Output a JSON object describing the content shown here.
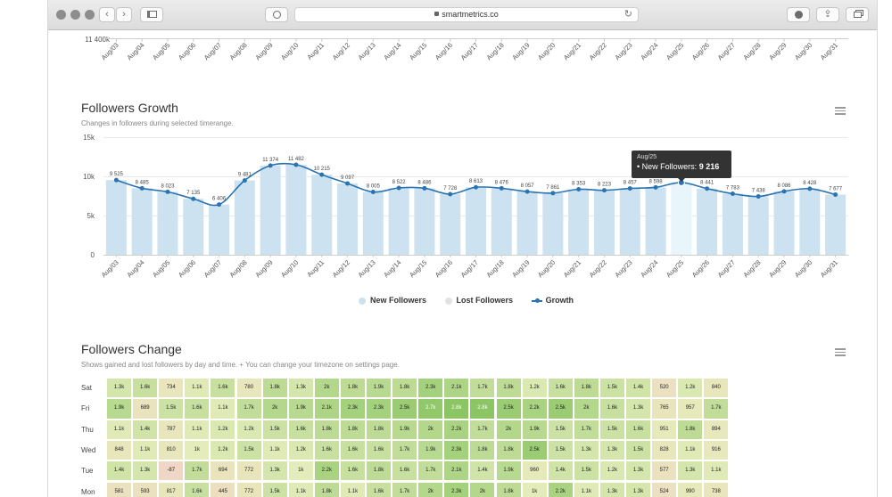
{
  "browser": {
    "url": "smartmetrics.co"
  },
  "top_chart": {
    "y_tick": "11 400k",
    "x_labels": [
      "Aug/03",
      "Aug/04",
      "Aug/05",
      "Aug/06",
      "Aug/07",
      "Aug/08",
      "Aug/09",
      "Aug/10",
      "Aug/11",
      "Aug/12",
      "Aug/13",
      "Aug/14",
      "Aug/15",
      "Aug/16",
      "Aug/17",
      "Aug/18",
      "Aug/19",
      "Aug/20",
      "Aug/21",
      "Aug/22",
      "Aug/23",
      "Aug/24",
      "Aug/25",
      "Aug/26",
      "Aug/27",
      "Aug/28",
      "Aug/29",
      "Aug/30",
      "Aug/31"
    ]
  },
  "growth": {
    "title": "Followers Growth",
    "subtitle": "Changes in followers during selected timerange.",
    "tooltip": {
      "date": "Aug/25",
      "label": "• New Followers:",
      "value": "9 216"
    },
    "legend": [
      {
        "name": "New Followers",
        "color": "#cde2f1"
      },
      {
        "name": "Lost Followers",
        "color": "#e2e2e2"
      },
      {
        "name": "Growth",
        "color": "#2a74b3"
      }
    ]
  },
  "chart_data": {
    "type": "bar",
    "categories": [
      "Aug/03",
      "Aug/04",
      "Aug/05",
      "Aug/06",
      "Aug/07",
      "Aug/08",
      "Aug/09",
      "Aug/10",
      "Aug/11",
      "Aug/12",
      "Aug/13",
      "Aug/14",
      "Aug/15",
      "Aug/16",
      "Aug/17",
      "Aug/18",
      "Aug/19",
      "Aug/20",
      "Aug/21",
      "Aug/22",
      "Aug/23",
      "Aug/24",
      "Aug/25",
      "Aug/26",
      "Aug/27",
      "Aug/28",
      "Aug/29",
      "Aug/30",
      "Aug/31"
    ],
    "y_ticks": [
      "0",
      "5k",
      "10k",
      "15k"
    ],
    "ylim": [
      0,
      15000
    ],
    "series": [
      {
        "name": "New Followers",
        "type": "bar",
        "values": [
          9525,
          8485,
          8023,
          7135,
          6406,
          9481,
          11374,
          11482,
          10215,
          9097,
          8005,
          8522,
          8486,
          7728,
          8613,
          8476,
          8057,
          7861,
          8353,
          8223,
          8457,
          8598,
          9216,
          8441,
          7783,
          7438,
          8086,
          8428,
          7677
        ]
      },
      {
        "name": "Growth",
        "type": "line",
        "values": [
          9525,
          8485,
          8023,
          7135,
          6406,
          9481,
          11374,
          11482,
          10215,
          9097,
          8005,
          8522,
          8486,
          7728,
          8613,
          8476,
          8057,
          7861,
          8353,
          8223,
          8457,
          8598,
          9216,
          8441,
          7783,
          7438,
          8086,
          8428,
          7677
        ]
      }
    ],
    "data_labels": [
      "9 525",
      "8 485",
      "8 023",
      "7 135",
      "6 406",
      "9 481",
      "11 374",
      "11 482",
      "10 215",
      "9 097",
      "8 005",
      "8 522",
      "8 486",
      "7 728",
      "8 613",
      "8 476",
      "8 057",
      "7 861",
      "8 353",
      "8 223",
      "8 457",
      "8 598",
      "",
      "8 441",
      "7 783",
      "7 438",
      "8 086",
      "8 428",
      "7 677"
    ],
    "legend": "bottom",
    "grid": true
  },
  "change": {
    "title": "Followers Change",
    "subtitle": "Shows gained and lost followers by day and time. + You can change your timezone on settings page.",
    "rows": [
      {
        "day": "Sat",
        "values": [
          "1.3k",
          "1.6k",
          "734",
          "1.1k",
          "1.6k",
          "780",
          "1.8k",
          "1.3k",
          "2k",
          "1.8k",
          "1.9k",
          "1.8k",
          "2.3k",
          "2.1k",
          "1.7k",
          "1.8k",
          "1.2k",
          "1.6k",
          "1.8k",
          "1.5k",
          "1.4k",
          "520",
          "1.2k",
          "840"
        ]
      },
      {
        "day": "Fri",
        "values": [
          "1.9k",
          "689",
          "1.5k",
          "1.6k",
          "1.1k",
          "1.7k",
          "2k",
          "1.9k",
          "2.1k",
          "2.3k",
          "2.3k",
          "2.5k",
          "2.7k",
          "2.8k",
          "2.8k",
          "2.5k",
          "2.2k",
          "2.5k",
          "2k",
          "1.6k",
          "1.3k",
          "765",
          "957",
          "1.7k"
        ]
      },
      {
        "day": "Thu",
        "values": [
          "1.1k",
          "1.4k",
          "787",
          "1.1k",
          "1.2k",
          "1.2k",
          "1.5k",
          "1.6k",
          "1.8k",
          "1.8k",
          "1.8k",
          "1.9k",
          "2k",
          "2.2k",
          "1.7k",
          "2k",
          "1.9k",
          "1.5k",
          "1.7k",
          "1.5k",
          "1.6k",
          "951",
          "1.8k",
          "894"
        ]
      },
      {
        "day": "Wed",
        "values": [
          "848",
          "1.1k",
          "810",
          "1k",
          "1.2k",
          "1.5k",
          "1.1k",
          "1.2k",
          "1.6k",
          "1.6k",
          "1.6k",
          "1.7k",
          "1.9k",
          "2.3k",
          "1.8k",
          "1.8k",
          "2.5k",
          "1.5k",
          "1.3k",
          "1.3k",
          "1.5k",
          "828",
          "1.1k",
          "916"
        ]
      },
      {
        "day": "Tue",
        "values": [
          "1.4k",
          "1.3k",
          "-87",
          "1.7k",
          "694",
          "772",
          "1.3k",
          "1k",
          "2.2k",
          "1.6k",
          "1.8k",
          "1.6k",
          "1.7k",
          "2.1k",
          "1.4k",
          "1.9k",
          "960",
          "1.4k",
          "1.5k",
          "1.2k",
          "1.3k",
          "577",
          "1.3k",
          "1.1k"
        ]
      },
      {
        "day": "Mon",
        "values": [
          "581",
          "593",
          "817",
          "1.6k",
          "445",
          "772",
          "1.5k",
          "1.1k",
          "1.8k",
          "1.1k",
          "1.6k",
          "1.7k",
          "2k",
          "2.3k",
          "2k",
          "1.8k",
          "1k",
          "2.2k",
          "1.1k",
          "1.3k",
          "1.3k",
          "524",
          "990",
          "738"
        ]
      }
    ]
  }
}
